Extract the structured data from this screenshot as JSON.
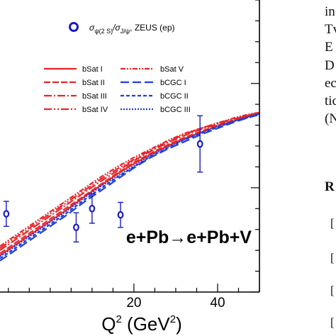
{
  "chart_data": {
    "type": "line",
    "title": "",
    "xlabel": "Q",
    "xlabel_sup": "2",
    "xlabel_unit_open": "(GeV",
    "xlabel_unit_sup": "2",
    "xlabel_unit_close": ")",
    "xlim": [
      -12,
      50
    ],
    "ylim": [
      0.02,
      0.3
    ],
    "x_ticks": [
      {
        "value": 20,
        "label": "20"
      },
      {
        "value": 40,
        "label": "40"
      }
    ],
    "x_minor_step": 5,
    "y_minor_step": 0.02,
    "grid": false,
    "annotation": "e+Pb→e+Pb+V",
    "data_legend": {
      "label_prefix": "σ",
      "label_sub1": "ψ(2 S)",
      "label_mid": "/σ",
      "label_sub2": "J/ψ",
      "label_suffix": ", ZEUS (ep)"
    },
    "data_points": {
      "name": "ZEUS (ep)",
      "color": "#1a1ac8",
      "x": [
        -10.5,
        6.2,
        10.0,
        16.8,
        35.8
      ],
      "y": [
        0.095,
        0.082,
        0.1,
        0.094,
        0.162
      ],
      "yerr": [
        0.012,
        0.014,
        0.014,
        0.012,
        0.027
      ]
    },
    "curves_x": [
      -12,
      -8,
      -4,
      0,
      4,
      8,
      12,
      16,
      20,
      24,
      28,
      32,
      36,
      40,
      44,
      48,
      50
    ],
    "series": [
      {
        "name": "bSat  I",
        "color": "#e8252a",
        "dash": "",
        "legend_col": 0,
        "legend_row": 0,
        "y": [
          0.055,
          0.066,
          0.077,
          0.088,
          0.099,
          0.111,
          0.122,
          0.133,
          0.143,
          0.152,
          0.16,
          0.167,
          0.173,
          0.179,
          0.184,
          0.189,
          0.191
        ]
      },
      {
        "name": "bSat  II",
        "color": "#e8252a",
        "dash": "9,3",
        "legend_col": 0,
        "legend_row": 1,
        "y": [
          0.057,
          0.068,
          0.079,
          0.09,
          0.101,
          0.112,
          0.123,
          0.134,
          0.144,
          0.153,
          0.161,
          0.168,
          0.174,
          0.18,
          0.185,
          0.19,
          0.192
        ]
      },
      {
        "name": "bSat  III",
        "color": "#e8252a",
        "dash": "11,3,2,3",
        "legend_col": 0,
        "legend_row": 2,
        "y": [
          0.06,
          0.071,
          0.082,
          0.093,
          0.104,
          0.115,
          0.126,
          0.136,
          0.146,
          0.155,
          0.163,
          0.17,
          0.176,
          0.181,
          0.186,
          0.19,
          0.192
        ]
      },
      {
        "name": "bSat  IV",
        "color": "#e8252a",
        "dash": "11,3,2,3,2,3",
        "legend_col": 0,
        "legend_row": 3,
        "y": [
          0.062,
          0.073,
          0.084,
          0.095,
          0.106,
          0.117,
          0.128,
          0.138,
          0.147,
          0.156,
          0.164,
          0.171,
          0.177,
          0.182,
          0.186,
          0.19,
          0.192
        ]
      },
      {
        "name": "bSat  V",
        "color": "#e8252a",
        "dash": "7,2,2,2,2,2",
        "legend_col": 1,
        "legend_row": 0,
        "y": [
          0.064,
          0.075,
          0.086,
          0.097,
          0.108,
          0.119,
          0.13,
          0.14,
          0.149,
          0.157,
          0.165,
          0.172,
          0.177,
          0.182,
          0.187,
          0.191,
          0.192
        ]
      },
      {
        "name": "bCGC  I",
        "color": "#1f3fd6",
        "dash": "12,5",
        "legend_col": 1,
        "legend_row": 1,
        "y": [
          0.05,
          0.061,
          0.072,
          0.083,
          0.094,
          0.106,
          0.117,
          0.128,
          0.139,
          0.149,
          0.157,
          0.164,
          0.171,
          0.177,
          0.183,
          0.188,
          0.19
        ]
      },
      {
        "name": "bCGC  II",
        "color": "#1f3fd6",
        "dash": "5,3",
        "legend_col": 1,
        "legend_row": 2,
        "y": [
          0.052,
          0.063,
          0.074,
          0.085,
          0.096,
          0.108,
          0.119,
          0.13,
          0.14,
          0.15,
          0.158,
          0.166,
          0.172,
          0.178,
          0.184,
          0.188,
          0.191
        ]
      },
      {
        "name": "bCGC  III",
        "color": "#1f3fd6",
        "dash": "2,2",
        "legend_col": 1,
        "legend_row": 3,
        "y": [
          0.054,
          0.065,
          0.076,
          0.087,
          0.098,
          0.11,
          0.121,
          0.131,
          0.141,
          0.151,
          0.159,
          0.166,
          0.173,
          0.179,
          0.184,
          0.189,
          0.191
        ]
      }
    ]
  },
  "side_text": {
    "lines": [
      "in",
      "Tv",
      "E",
      "D",
      "ec",
      "tic",
      "(N"
    ],
    "heading": "R",
    "brackets": [
      "[",
      "[",
      "[",
      "["
    ]
  }
}
